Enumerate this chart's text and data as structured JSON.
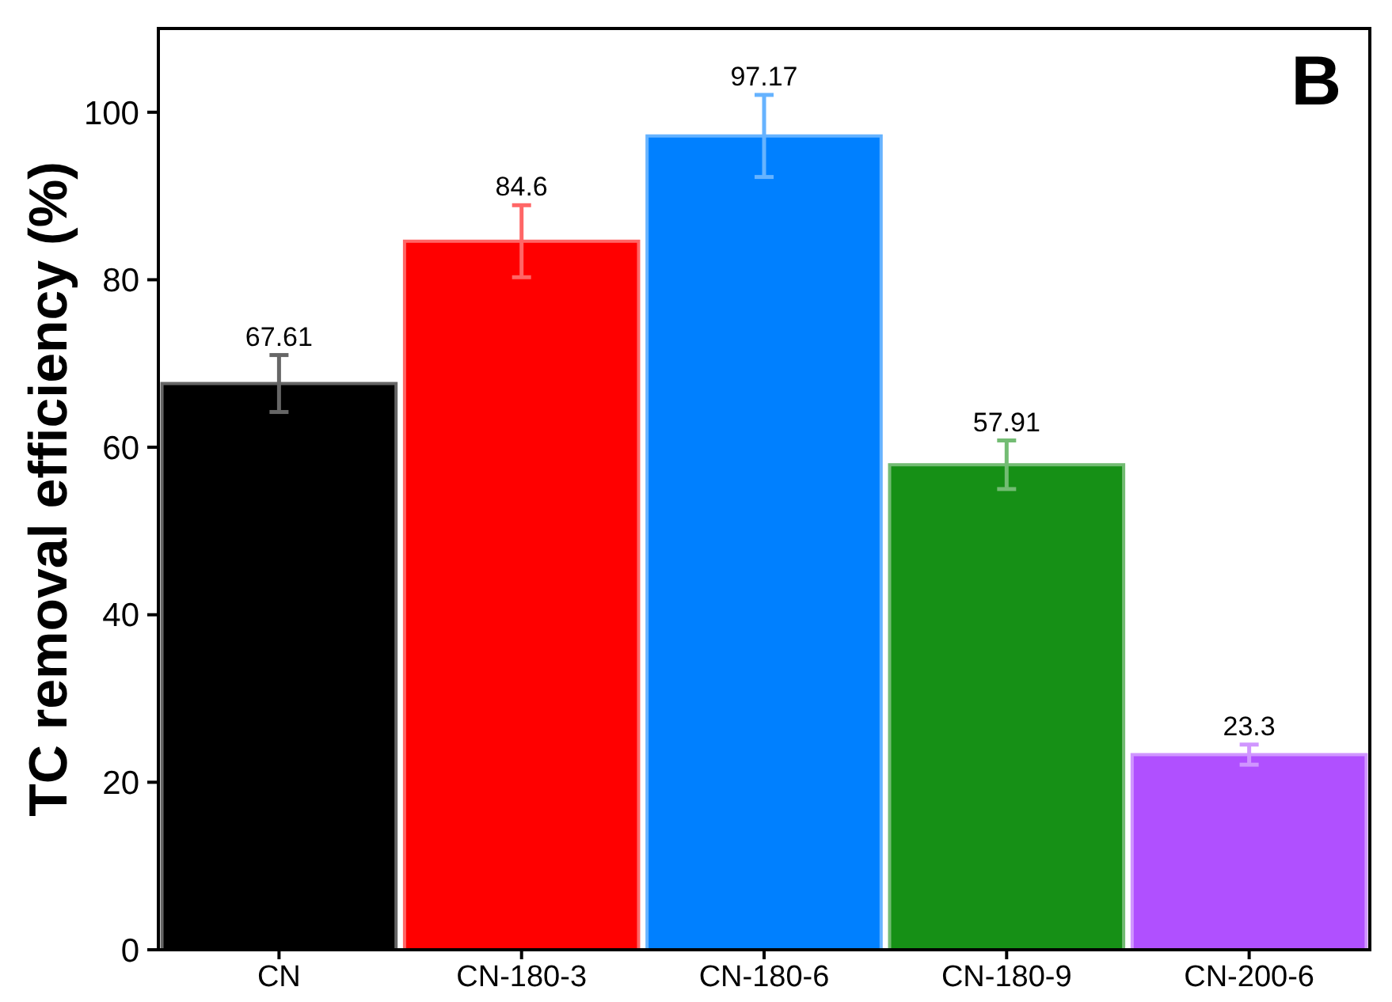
{
  "chart_data": {
    "type": "bar",
    "title": "B",
    "ylabel": "TC removal efficiency (%)",
    "categories": [
      "CN",
      "CN-180-3",
      "CN-180-6",
      "CN-180-9",
      "CN-200-6"
    ],
    "values": [
      67.61,
      84.6,
      97.17,
      57.91,
      23.3
    ],
    "colors": [
      "#000000",
      "#ff0000",
      "#0080ff",
      "#169016",
      "#b050ff"
    ],
    "errors": [
      3.4,
      4.3,
      4.9,
      2.9,
      1.2
    ],
    "ylim": [
      0,
      110
    ],
    "yticks": [
      0,
      20,
      40,
      60,
      80,
      100
    ],
    "data_labels": true
  }
}
